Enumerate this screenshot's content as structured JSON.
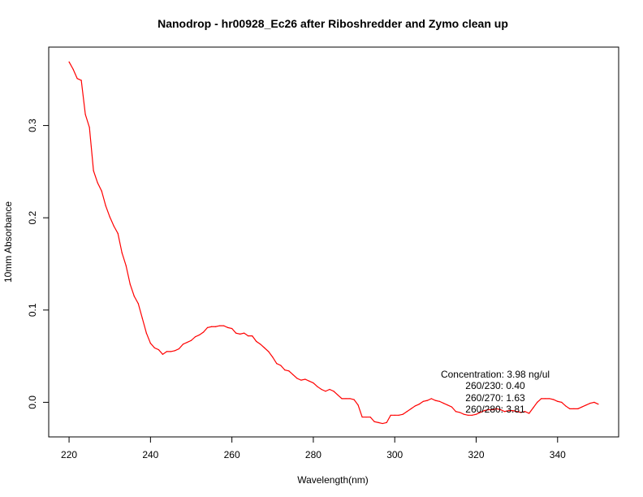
{
  "chart_data": {
    "type": "line",
    "title": "Nanodrop - hr00928_Ec26 after Riboshredder and Zymo clean up",
    "xlabel": "Wavelength(nm)",
    "ylabel": "10mm Absorbance",
    "xlim": [
      215,
      355
    ],
    "ylim": [
      -0.0375,
      0.385
    ],
    "grid": false,
    "line_color": "#ff0000",
    "x_ticks": [
      220,
      240,
      260,
      280,
      300,
      320,
      340
    ],
    "x_tick_labels": [
      "220",
      "240",
      "260",
      "280",
      "300",
      "320",
      "340"
    ],
    "y_ticks": [
      0.0,
      0.1,
      0.2,
      0.3
    ],
    "y_tick_labels": [
      "0.0",
      "0.1",
      "0.2",
      "0.3"
    ],
    "annotations": [
      "Concentration: 3.98 ng/ul",
      "260/230: 0.40",
      "260/270: 1.63",
      "260/280: 3.81"
    ],
    "series": [
      {
        "x": [
          220,
          221,
          222,
          223,
          224,
          225,
          226,
          227,
          228,
          229,
          230,
          231,
          232,
          233,
          234,
          235,
          236,
          237,
          238,
          239,
          240,
          241,
          242,
          243,
          244,
          245,
          246,
          247,
          248,
          249,
          250,
          251,
          252,
          253,
          254,
          255,
          256,
          257,
          258,
          259,
          260,
          261,
          262,
          263,
          264,
          265,
          266,
          267,
          268,
          269,
          270,
          271,
          272,
          273,
          274,
          275,
          276,
          277,
          278,
          279,
          280,
          281,
          282,
          283,
          284,
          285,
          286,
          287,
          288,
          289,
          290,
          291,
          292,
          293,
          294,
          295,
          296,
          297,
          298,
          299,
          300,
          301,
          302,
          303,
          304,
          305,
          306,
          307,
          308,
          309,
          310,
          311,
          312,
          313,
          314,
          315,
          316,
          317,
          318,
          319,
          320,
          321,
          322,
          323,
          324,
          325,
          326,
          327,
          328,
          329,
          330,
          331,
          332,
          333,
          334,
          335,
          336,
          337,
          338,
          339,
          340,
          341,
          342,
          343,
          344,
          345,
          346,
          347,
          348,
          349,
          350
        ],
        "y": [
          0.369,
          0.361,
          0.351,
          0.349,
          0.312,
          0.298,
          0.251,
          0.238,
          0.229,
          0.213,
          0.201,
          0.191,
          0.183,
          0.162,
          0.148,
          0.128,
          0.115,
          0.107,
          0.091,
          0.075,
          0.064,
          0.059,
          0.057,
          0.052,
          0.055,
          0.055,
          0.056,
          0.058,
          0.063,
          0.065,
          0.067,
          0.071,
          0.073,
          0.076,
          0.081,
          0.082,
          0.082,
          0.083,
          0.083,
          0.081,
          0.08,
          0.075,
          0.074,
          0.075,
          0.072,
          0.072,
          0.066,
          0.063,
          0.059,
          0.055,
          0.049,
          0.042,
          0.04,
          0.035,
          0.034,
          0.03,
          0.026,
          0.024,
          0.025,
          0.023,
          0.021,
          0.017,
          0.014,
          0.012,
          0.014,
          0.012,
          0.008,
          0.004,
          0.004,
          0.004,
          0.003,
          -0.003,
          -0.016,
          -0.016,
          -0.016,
          -0.021,
          -0.022,
          -0.023,
          -0.022,
          -0.014,
          -0.014,
          -0.014,
          -0.013,
          -0.01,
          -0.007,
          -0.004,
          -0.002,
          0.001,
          0.002,
          0.004,
          0.002,
          0.001,
          -0.001,
          -0.003,
          -0.005,
          -0.01,
          -0.011,
          -0.013,
          -0.014,
          -0.014,
          -0.013,
          -0.011,
          -0.009,
          -0.008,
          -0.008,
          -0.007,
          -0.008,
          -0.01,
          -0.009,
          -0.009,
          -0.01,
          -0.011,
          -0.01,
          -0.012,
          -0.006,
          0.0,
          0.004,
          0.004,
          0.004,
          0.003,
          0.001,
          0.0,
          -0.004,
          -0.007,
          -0.007,
          -0.007,
          -0.005,
          -0.003,
          -0.001,
          0.0,
          -0.002
        ]
      }
    ]
  }
}
